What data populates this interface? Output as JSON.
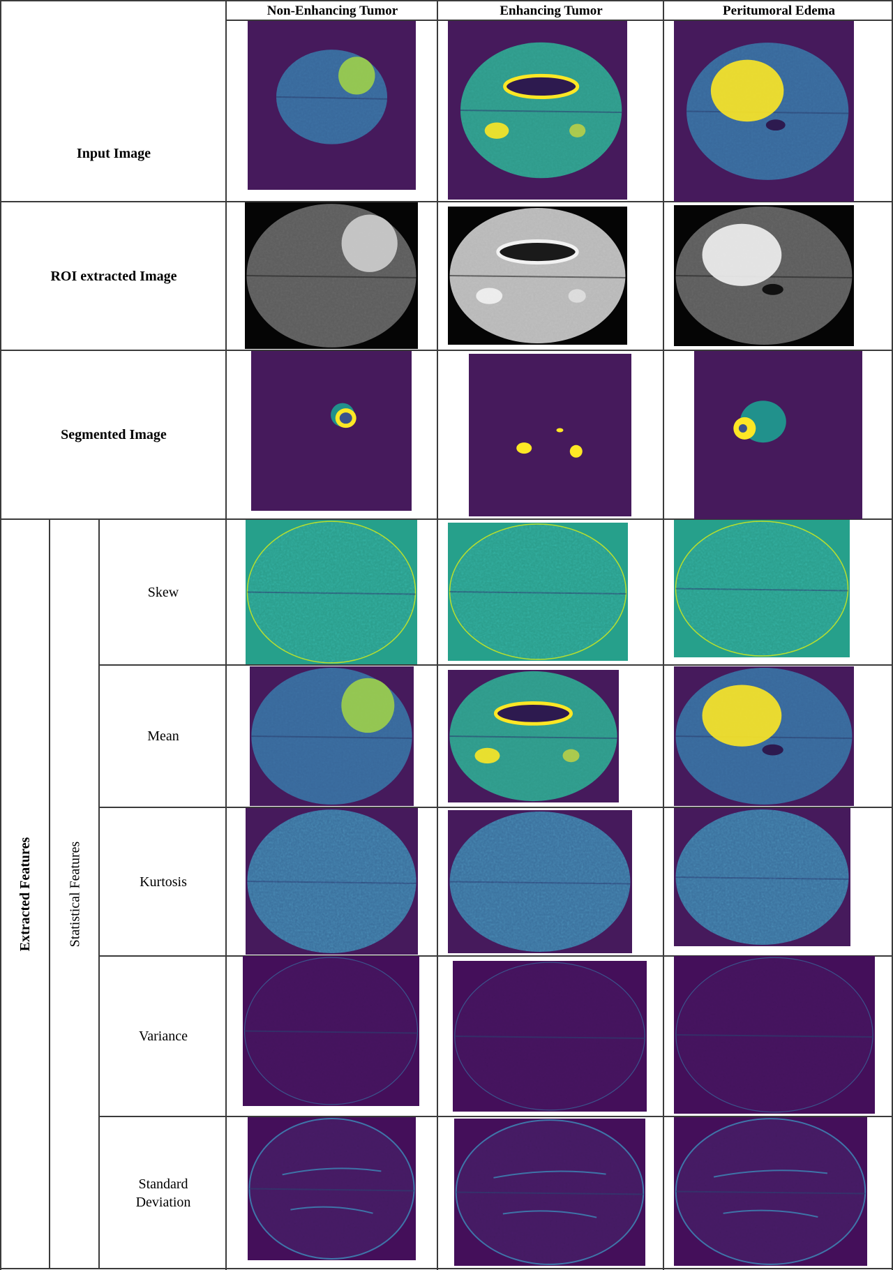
{
  "columns": [
    "Non-Enhancing Tumor",
    "Enhancing Tumor",
    "Peritumoral Edema"
  ],
  "rows": [
    {
      "label": "Input Image",
      "image_style": "viridis-input"
    },
    {
      "label": "ROI extracted Image",
      "image_style": "grayscale-roi"
    },
    {
      "label": "Segmented Image",
      "image_style": "viridis-segmentation"
    }
  ],
  "extracted": {
    "group_label": "Extracted Features",
    "subgroup_label": "Statistical Features",
    "features": [
      {
        "label": "Skew",
        "image_style": "viridis-skew-map"
      },
      {
        "label": "Mean",
        "image_style": "viridis-mean-map"
      },
      {
        "label": "Kurtosis",
        "image_style": "viridis-kurtosis-map"
      },
      {
        "label": "Variance",
        "image_style": "viridis-variance-map"
      },
      {
        "label": "Standard Deviation",
        "image_style": "viridis-std-map"
      }
    ]
  },
  "colors": {
    "viridis_dark": "#461a5c",
    "viridis_blue": "#3b528b",
    "viridis_teal": "#21918c",
    "viridis_green": "#5ec962",
    "viridis_yellow": "#fde725",
    "grid_line": "#3a3a3a"
  }
}
